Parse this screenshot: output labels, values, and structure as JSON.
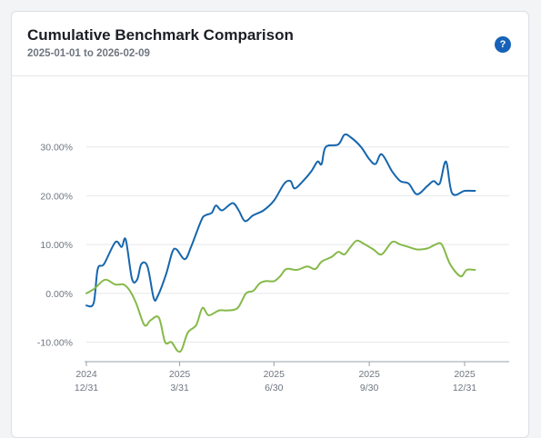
{
  "card": {
    "title": "Cumulative Benchmark Comparison",
    "subtitle": "2025-01-01 to 2026-02-09",
    "help_icon": "question-circle-icon",
    "help_glyph": "?"
  },
  "colors": {
    "series_blue": "#1666ad",
    "series_green": "#86b94a",
    "grid": "#e6e8eb",
    "axis": "#9aa0a6",
    "help_bg": "#1762b8"
  },
  "chart_data": {
    "type": "line",
    "title": "Cumulative Benchmark Comparison",
    "subtitle": "2025-01-01 to 2026-02-09",
    "xlabel": "",
    "ylabel": "",
    "grid": true,
    "y_ticks": [
      30,
      20,
      10,
      0,
      -10
    ],
    "y_tick_labels": [
      "30.00%",
      "20.00%",
      "10.00%",
      "0.00%",
      "-10.00%"
    ],
    "ylim": [
      -14,
      40
    ],
    "xlim": [
      "2024-12-31",
      "2026-02-12"
    ],
    "x_ticks": [
      {
        "date": "2024-12-31",
        "line1": "2024",
        "line2": "12/31"
      },
      {
        "date": "2025-03-31",
        "line1": "2025",
        "line2": "3/31"
      },
      {
        "date": "2025-06-30",
        "line1": "2025",
        "line2": "6/30"
      },
      {
        "date": "2025-09-30",
        "line1": "2025",
        "line2": "9/30"
      },
      {
        "date": "2025-12-31",
        "line1": "2025",
        "line2": "12/31"
      }
    ],
    "series": [
      {
        "color": "#1666ad",
        "points": [
          [
            "2024-12-31",
            -2.5
          ],
          [
            "2025-01-07",
            -2.0
          ],
          [
            "2025-01-11",
            5.0
          ],
          [
            "2025-01-17",
            6.0
          ],
          [
            "2025-01-28",
            10.5
          ],
          [
            "2025-02-03",
            9.5
          ],
          [
            "2025-02-07",
            11.0
          ],
          [
            "2025-02-13",
            3.0
          ],
          [
            "2025-02-18",
            2.8
          ],
          [
            "2025-02-22",
            6.0
          ],
          [
            "2025-02-28",
            5.5
          ],
          [
            "2025-03-06",
            -1.0
          ],
          [
            "2025-03-10",
            -0.5
          ],
          [
            "2025-03-18",
            4.0
          ],
          [
            "2025-03-24",
            8.5
          ],
          [
            "2025-03-28",
            9.0
          ],
          [
            "2025-04-05",
            7.0
          ],
          [
            "2025-04-11",
            9.5
          ],
          [
            "2025-04-21",
            15.0
          ],
          [
            "2025-04-25",
            16.0
          ],
          [
            "2025-05-01",
            16.5
          ],
          [
            "2025-05-05",
            18.0
          ],
          [
            "2025-05-11",
            17.0
          ],
          [
            "2025-05-21",
            18.5
          ],
          [
            "2025-05-27",
            17.0
          ],
          [
            "2025-06-02",
            14.8
          ],
          [
            "2025-06-10",
            16.0
          ],
          [
            "2025-06-20",
            17.0
          ],
          [
            "2025-06-30",
            19.0
          ],
          [
            "2025-07-10",
            22.5
          ],
          [
            "2025-07-16",
            23.0
          ],
          [
            "2025-07-20",
            21.5
          ],
          [
            "2025-07-28",
            23.0
          ],
          [
            "2025-08-05",
            25.0
          ],
          [
            "2025-08-11",
            27.0
          ],
          [
            "2025-08-15",
            26.5
          ],
          [
            "2025-08-19",
            30.0
          ],
          [
            "2025-08-31",
            30.5
          ],
          [
            "2025-09-06",
            32.5
          ],
          [
            "2025-09-12",
            32.0
          ],
          [
            "2025-09-22",
            30.0
          ],
          [
            "2025-09-30",
            27.5
          ],
          [
            "2025-10-06",
            26.5
          ],
          [
            "2025-10-12",
            28.5
          ],
          [
            "2025-10-22",
            25.0
          ],
          [
            "2025-10-30",
            23.0
          ],
          [
            "2025-11-07",
            22.5
          ],
          [
            "2025-11-15",
            20.3
          ],
          [
            "2025-11-25",
            22.0
          ],
          [
            "2025-12-01",
            23.0
          ],
          [
            "2025-12-07",
            22.5
          ],
          [
            "2025-12-13",
            27.0
          ],
          [
            "2025-12-19",
            20.5
          ],
          [
            "2025-12-31",
            21.0
          ],
          [
            "2026-01-10",
            21.0
          ]
        ]
      },
      {
        "color": "#86b94a",
        "points": [
          [
            "2024-12-31",
            0.0
          ],
          [
            "2025-01-08",
            1.0
          ],
          [
            "2025-01-18",
            2.8
          ],
          [
            "2025-01-28",
            1.8
          ],
          [
            "2025-02-05",
            1.8
          ],
          [
            "2025-02-11",
            0.5
          ],
          [
            "2025-02-17",
            -2.0
          ],
          [
            "2025-02-25",
            -6.5
          ],
          [
            "2025-03-03",
            -5.5
          ],
          [
            "2025-03-11",
            -5.0
          ],
          [
            "2025-03-17",
            -10.0
          ],
          [
            "2025-03-23",
            -10.0
          ],
          [
            "2025-03-29",
            -11.8
          ],
          [
            "2025-04-02",
            -11.5
          ],
          [
            "2025-04-08",
            -8.0
          ],
          [
            "2025-04-16",
            -6.5
          ],
          [
            "2025-04-22",
            -3.0
          ],
          [
            "2025-04-28",
            -4.5
          ],
          [
            "2025-05-08",
            -3.5
          ],
          [
            "2025-05-16",
            -3.5
          ],
          [
            "2025-05-26",
            -3.0
          ],
          [
            "2025-06-03",
            0.0
          ],
          [
            "2025-06-10",
            0.5
          ],
          [
            "2025-06-16",
            2.0
          ],
          [
            "2025-06-22",
            2.5
          ],
          [
            "2025-06-30",
            2.5
          ],
          [
            "2025-07-06",
            3.5
          ],
          [
            "2025-07-12",
            5.0
          ],
          [
            "2025-07-22",
            4.8
          ],
          [
            "2025-08-01",
            5.5
          ],
          [
            "2025-08-09",
            5.0
          ],
          [
            "2025-08-15",
            6.5
          ],
          [
            "2025-08-25",
            7.5
          ],
          [
            "2025-08-31",
            8.5
          ],
          [
            "2025-09-06",
            8.0
          ],
          [
            "2025-09-12",
            9.5
          ],
          [
            "2025-09-18",
            10.8
          ],
          [
            "2025-09-26",
            10.0
          ],
          [
            "2025-10-04",
            9.0
          ],
          [
            "2025-10-12",
            8.0
          ],
          [
            "2025-10-22",
            10.5
          ],
          [
            "2025-10-30",
            10.0
          ],
          [
            "2025-11-07",
            9.5
          ],
          [
            "2025-11-15",
            9.0
          ],
          [
            "2025-11-25",
            9.2
          ],
          [
            "2025-12-03",
            10.0
          ],
          [
            "2025-12-09",
            10.0
          ],
          [
            "2025-12-17",
            6.0
          ],
          [
            "2025-12-27",
            3.5
          ],
          [
            "2026-01-02",
            4.8
          ],
          [
            "2026-01-10",
            4.8
          ]
        ]
      }
    ]
  }
}
